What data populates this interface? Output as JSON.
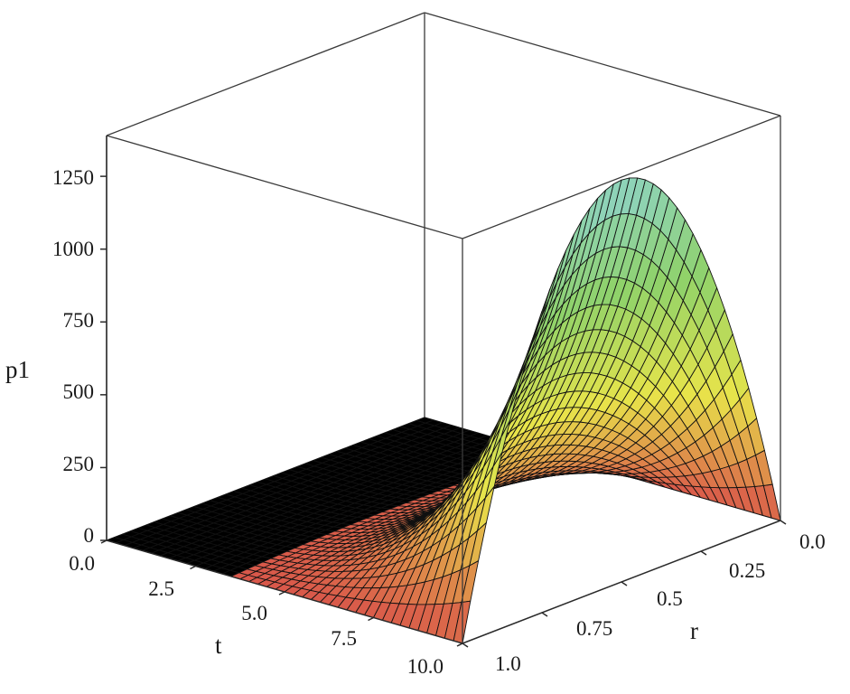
{
  "chart_data": {
    "type": "surface3d",
    "title": "",
    "axes": {
      "t": {
        "label": "t",
        "range": [
          0,
          10
        ],
        "ticks": [
          "0.0",
          "2.5",
          "5.0",
          "7.5",
          "10.0"
        ]
      },
      "r": {
        "label": "r",
        "range": [
          0,
          1
        ],
        "ticks": [
          "0.0",
          "0.25",
          "0.5",
          "0.75",
          "1.0"
        ]
      },
      "p1": {
        "label": "p1",
        "range": [
          0,
          1390
        ],
        "ticks": [
          "0",
          "250",
          "500",
          "750",
          "1000",
          "1250"
        ]
      }
    },
    "surface": {
      "description_values": {
        "peak": {
          "t": 10,
          "r": 0.5,
          "p1": 1380
        },
        "value_at_t0": 0,
        "value_at_r0": 0,
        "value_at_r1": 0
      },
      "grid": {
        "t_lines": 11,
        "r_lines": 11
      },
      "colormap": [
        "#d9574a",
        "#e8e44a",
        "#8fd26a",
        "#8ed3c8"
      ]
    }
  }
}
